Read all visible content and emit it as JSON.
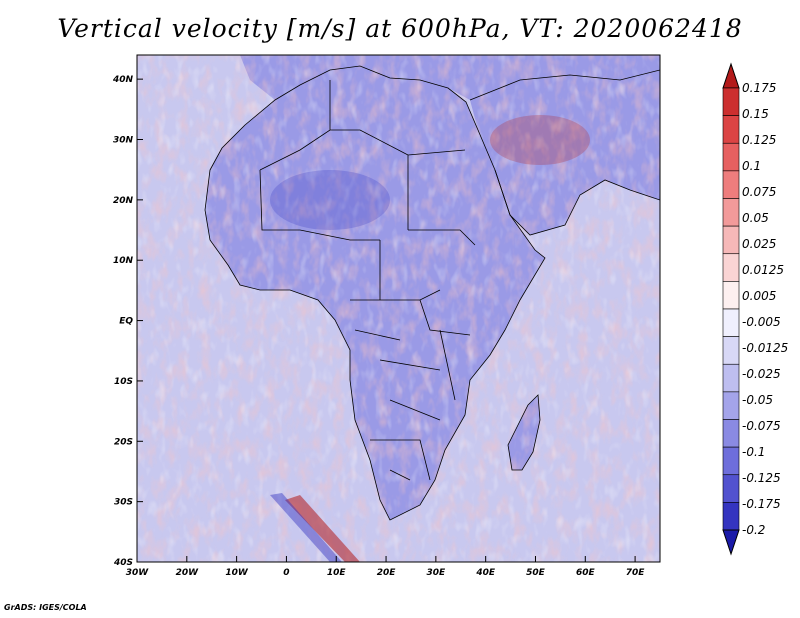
{
  "title": "Vertical velocity [m/s] at 600hPa, VT: 2020062418",
  "credit": "GrADS: IGES/COLA",
  "map": {
    "lon_ticks": [
      "30W",
      "20W",
      "10W",
      "0",
      "10E",
      "20E",
      "30E",
      "40E",
      "50E",
      "60E",
      "70E"
    ],
    "lat_ticks": [
      "40N",
      "30N",
      "20N",
      "10N",
      "EQ",
      "10S",
      "20S",
      "30S",
      "40S"
    ],
    "lon_range": [
      -30,
      75
    ],
    "lat_range": [
      -40,
      44
    ],
    "land_color": "#9a9ae6",
    "sea_color": "#c8c8ef"
  },
  "colorbar": {
    "labels": [
      "0.175",
      "0.15",
      "0.125",
      "0.1",
      "0.075",
      "0.05",
      "0.025",
      "0.0125",
      "0.005",
      "-0.005",
      "-0.0125",
      "-0.025",
      "-0.05",
      "-0.075",
      "-0.1",
      "-0.125",
      "-0.175",
      "-0.2"
    ],
    "colors": [
      "#b31a1a",
      "#cc2f2f",
      "#db4444",
      "#e66060",
      "#ee7d7d",
      "#f29a9a",
      "#f6b8b8",
      "#fad4d4",
      "#fdf0f0",
      "#f0f0fd",
      "#d8d8f6",
      "#bebef0",
      "#a4a4ea",
      "#8a8ae3",
      "#6e6edb",
      "#5252cf",
      "#3434c0",
      "#1a1aa8"
    ]
  }
}
